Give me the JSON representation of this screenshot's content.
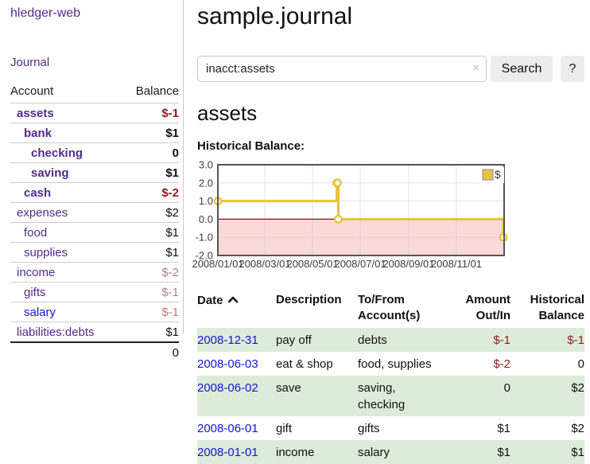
{
  "colors": {
    "link_purple": "#552a8b",
    "link_blue": "#1414dd",
    "negative_strong": "#8f1d21",
    "negative_muted": "#bf7a7e",
    "row_stripe_green": "#dcecd8",
    "button_gray": "#ececec",
    "chart_line": "#e8c23f",
    "chart_marker_fill": "#ffffff",
    "chart_negative_region": "#fbd9d9",
    "chart_zero_line": "#8b1212",
    "chart_border": "#545454",
    "chart_grid": "#cccccc"
  },
  "sidebar": {
    "brand": "hledger-web",
    "journal_link": "Journal",
    "table": {
      "account_header": "Account",
      "balance_header": "Balance",
      "rows": [
        {
          "account": "assets",
          "balance": "$-1",
          "row_class": "lvl1 bold",
          "balance_class": "neg-strong"
        },
        {
          "account": "bank",
          "balance": "$1",
          "row_class": "lvl2 bold",
          "balance_class": ""
        },
        {
          "account": "checking",
          "balance": "0",
          "row_class": "lvl3 bold",
          "balance_class": ""
        },
        {
          "account": "saving",
          "balance": "$1",
          "row_class": "lvl3 bold",
          "balance_class": ""
        },
        {
          "account": "cash",
          "balance": "$-2",
          "row_class": "lvl2 bold",
          "balance_class": "neg-strong"
        },
        {
          "account": "expenses",
          "balance": "$2",
          "row_class": "lvl1",
          "balance_class": ""
        },
        {
          "account": "food",
          "balance": "$1",
          "row_class": "lvl2",
          "balance_class": ""
        },
        {
          "account": "supplies",
          "balance": "$1",
          "row_class": "lvl2",
          "balance_class": ""
        },
        {
          "account": "income",
          "balance": "$-2",
          "row_class": "lvl1",
          "balance_class": "neg-muted"
        },
        {
          "account": "gifts",
          "balance": "$-1",
          "row_class": "lvl2",
          "balance_class": "neg-muted"
        },
        {
          "account": "salary",
          "balance": "$-1",
          "row_class": "lvl2 blue",
          "balance_class": "neg-muted"
        },
        {
          "account": "liabilities:debts",
          "balance": "$1",
          "row_class": "lvl1",
          "balance_class": ""
        }
      ],
      "total": "0"
    }
  },
  "main": {
    "title": "sample.journal",
    "search": {
      "value": "inacct:assets",
      "clear_icon": "×",
      "search_button": "Search",
      "help_button": "?"
    },
    "account_heading": "assets",
    "section_label": "Historical Balance:",
    "register": {
      "headers": [
        "Date",
        "Description",
        "To/From Account(s)",
        "Amount Out/In",
        "Historical Balance"
      ],
      "sort_column": "Date",
      "sort_direction": "ascending",
      "rows": [
        {
          "date": "2008-12-31",
          "description": "pay off",
          "accounts": "debts",
          "amount": "$-1",
          "balance": "$-1",
          "amount_class": "neg",
          "balance_class": "neg"
        },
        {
          "date": "2008-06-03",
          "description": "eat & shop",
          "accounts": "food, supplies",
          "amount": "$-2",
          "balance": "0",
          "amount_class": "neg",
          "balance_class": ""
        },
        {
          "date": "2008-06-02",
          "description": "save",
          "accounts": "saving, checking",
          "amount": "0",
          "balance": "$2",
          "amount_class": "",
          "balance_class": ""
        },
        {
          "date": "2008-06-01",
          "description": "gift",
          "accounts": "gifts",
          "amount": "$1",
          "balance": "$2",
          "amount_class": "",
          "balance_class": ""
        },
        {
          "date": "2008-01-01",
          "description": "income",
          "accounts": "salary",
          "amount": "$1",
          "balance": "$1",
          "amount_class": "",
          "balance_class": ""
        }
      ]
    }
  },
  "chart_data": {
    "type": "line",
    "step": true,
    "title": "Historical Balance:",
    "series": [
      {
        "name": "$",
        "points": [
          [
            "2008-01-01",
            1
          ],
          [
            "2008-06-01",
            2
          ],
          [
            "2008-06-02",
            2
          ],
          [
            "2008-06-03",
            0
          ],
          [
            "2008-12-31",
            -1
          ]
        ]
      }
    ],
    "xlim": [
      "2008-01-01",
      "2009-01-01"
    ],
    "ylim": [
      -2,
      3
    ],
    "yticks": [
      3,
      2,
      1,
      0,
      -1,
      -2
    ],
    "ytick_labels": [
      "3.0",
      "2.0",
      "1.0",
      "0.0",
      "-1.0",
      "-2.0"
    ],
    "xticks": [
      "2008-01-01",
      "2008-03-01",
      "2008-05-01",
      "2008-07-01",
      "2008-09-01",
      "2008-11-01"
    ],
    "xtick_labels": [
      "2008/01/01",
      "2008/03/01",
      "2008/05/01",
      "2008/07/01",
      "2008/09/01",
      "2008/11/01"
    ],
    "grid": true,
    "legend": {
      "position": "top-right",
      "label": "$",
      "swatch": "yellow-square-icon"
    },
    "negative_region_shaded": true
  }
}
